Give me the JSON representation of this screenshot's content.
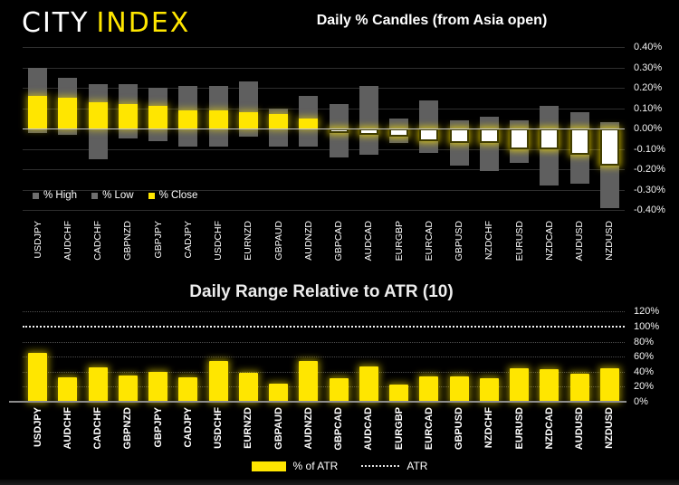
{
  "logo": {
    "city": "CITY",
    "index": "INDEX"
  },
  "colors": {
    "yellow": "#ffe600",
    "gray_bar": "#5f5f5f",
    "white_bar": "#ffffff",
    "gridline": "#2e2e2e",
    "zero_line": "#c9c9c9",
    "axis_line": "#8c8c8c",
    "text": "#f2f2f2",
    "background": "#000000"
  },
  "charts": {
    "top": {
      "title": "Daily % Candles (from Asia open)",
      "legend": [
        {
          "label": "% High",
          "swatch": "gray"
        },
        {
          "label": "% Low",
          "swatch": "gray"
        },
        {
          "label": "% Close",
          "swatch": "yellow"
        }
      ],
      "yticks": [
        "0.40%",
        "0.30%",
        "0.20%",
        "0.10%",
        "0.00%",
        "-0.10%",
        "-0.20%",
        "-0.30%",
        "-0.40%"
      ]
    },
    "bottom": {
      "title": "Daily Range Relative to ATR (10)",
      "legend": [
        {
          "label": "% of ATR",
          "swatch": "yellow-bar"
        },
        {
          "label": "ATR",
          "swatch": "dotted-line"
        }
      ],
      "yticks": [
        "120%",
        "100%",
        "80%",
        "60%",
        "40%",
        "20%",
        "0%"
      ]
    }
  },
  "chart_data": [
    {
      "type": "bar",
      "title": "Daily % Candles (from Asia open)",
      "categories": [
        "USDJPY",
        "AUDCHF",
        "CADCHF",
        "GBPNZD",
        "GBPJPY",
        "CADJPY",
        "USDCHF",
        "EURNZD",
        "GBPAUD",
        "AUDNZD",
        "GBPCAD",
        "AUDCAD",
        "EURGBP",
        "EURCAD",
        "GBPUSD",
        "NZDCHF",
        "EURUSD",
        "NZDCAD",
        "AUDUSD",
        "NZDUSD"
      ],
      "series": [
        {
          "name": "% High",
          "values": [
            0.3,
            0.25,
            0.22,
            0.22,
            0.2,
            0.21,
            0.21,
            0.23,
            0.1,
            0.16,
            0.12,
            0.21,
            0.05,
            0.14,
            0.04,
            0.06,
            0.04,
            0.11,
            0.08,
            0.03
          ]
        },
        {
          "name": "% Low",
          "values": [
            -0.02,
            -0.03,
            -0.15,
            -0.05,
            -0.06,
            -0.09,
            -0.09,
            -0.04,
            -0.09,
            -0.09,
            -0.14,
            -0.13,
            -0.07,
            -0.12,
            -0.18,
            -0.21,
            -0.17,
            -0.28,
            -0.27,
            -0.39
          ]
        },
        {
          "name": "% Close",
          "values": [
            0.16,
            0.15,
            0.13,
            0.12,
            0.11,
            0.09,
            0.09,
            0.08,
            0.07,
            0.05,
            -0.02,
            -0.03,
            -0.04,
            -0.06,
            -0.07,
            -0.07,
            -0.1,
            -0.1,
            -0.13,
            -0.18
          ]
        }
      ],
      "ylim": [
        -0.4,
        0.4
      ],
      "ytick_step": 0.1,
      "grid": true,
      "legend_position": "inside-bottom-left",
      "note": "gray bar spans % High to % Low; yellow solid bar = positive close from 0; white outlined bar = negative close from 0"
    },
    {
      "type": "bar",
      "title": "Daily Range Relative to ATR (10)",
      "categories": [
        "USDJPY",
        "AUDCHF",
        "CADCHF",
        "GBPNZD",
        "GBPJPY",
        "CADJPY",
        "USDCHF",
        "EURNZD",
        "GBPAUD",
        "AUDNZD",
        "GBPCAD",
        "AUDCAD",
        "EURGBP",
        "EURCAD",
        "GBPUSD",
        "NZDCHF",
        "EURUSD",
        "NZDCAD",
        "AUDUSD",
        "NZDUSD"
      ],
      "series": [
        {
          "name": "% of ATR",
          "values": [
            65,
            33,
            46,
            35,
            40,
            33,
            54,
            39,
            24,
            54,
            31,
            47,
            23,
            34,
            34,
            31,
            44,
            43,
            37,
            45
          ]
        }
      ],
      "reference_line": {
        "name": "ATR",
        "value": 100,
        "style": "dotted-white"
      },
      "ylim": [
        0,
        120
      ],
      "ytick_step": 20,
      "grid": "dotted",
      "legend_position": "below-center"
    }
  ]
}
